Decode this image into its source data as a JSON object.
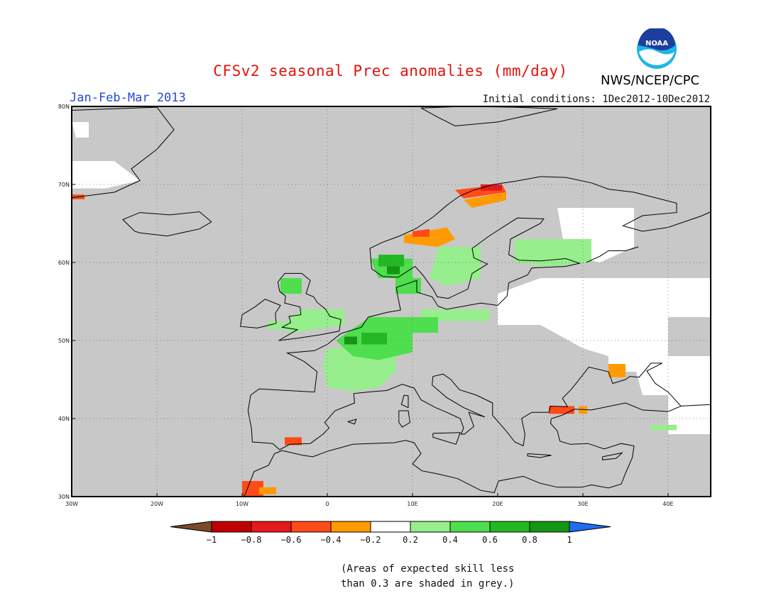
{
  "header": {
    "title": "CFSv2 seasonal Prec anomalies (mm/day)",
    "season": "Jan-Feb-Mar 2013",
    "initial_conditions": "Initial conditions: 1Dec2012-10Dec2012",
    "organization": "NWS/NCEP/CPC",
    "logo_text": "NOAA"
  },
  "map": {
    "lon_range": [
      -30,
      45
    ],
    "lat_range": [
      30,
      80
    ],
    "lon_ticks": [
      {
        "value": -30,
        "label": "30W"
      },
      {
        "value": -20,
        "label": "20W"
      },
      {
        "value": -10,
        "label": "10W"
      },
      {
        "value": 0,
        "label": "0"
      },
      {
        "value": 10,
        "label": "10E"
      },
      {
        "value": 20,
        "label": "20E"
      },
      {
        "value": 30,
        "label": "30E"
      },
      {
        "value": 40,
        "label": "40E"
      }
    ],
    "lat_ticks": [
      {
        "value": 30,
        "label": "30N"
      },
      {
        "value": 40,
        "label": "40N"
      },
      {
        "value": 50,
        "label": "50N"
      },
      {
        "value": 60,
        "label": "60N"
      },
      {
        "value": 70,
        "label": "70N"
      },
      {
        "value": 80,
        "label": "80N"
      }
    ],
    "grid": true,
    "colors": {
      "low_skill": "#c8c8c8",
      "neutral": "#ffffff",
      "coast": "#000000"
    }
  },
  "colorbar": {
    "boundaries": [
      "-1",
      "-0.8",
      "-0.6",
      "-0.4",
      "-0.2",
      "0.2",
      "0.4",
      "0.6",
      "0.8",
      "1"
    ],
    "colors": [
      "#7a4a2a",
      "#c00000",
      "#e41a1c",
      "#ff4a1a",
      "#ff9a00",
      "#ffffff",
      "#96ee8c",
      "#4ede4e",
      "#23b823",
      "#149614",
      "#1e6cf0"
    ]
  },
  "note": {
    "line1": "(Areas of expected skill less",
    "line2": "than 0.3 are shaded in grey.)"
  }
}
